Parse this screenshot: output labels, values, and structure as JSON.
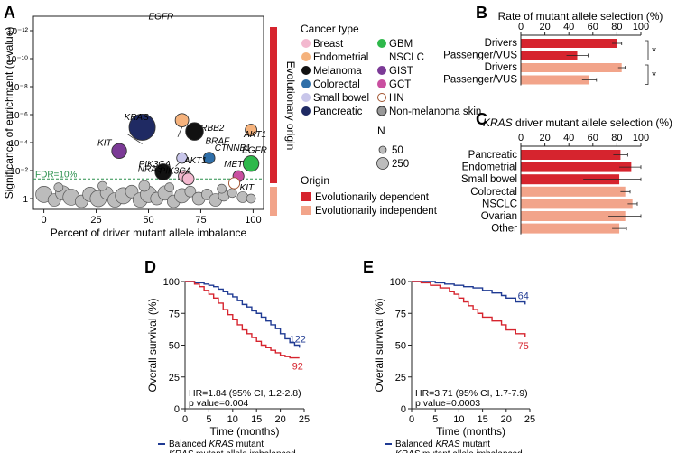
{
  "panel_letters": {
    "a": "A",
    "b": "B",
    "c": "C",
    "d": "D",
    "e": "E"
  },
  "chart_data": [
    {
      "id": "A",
      "type": "scatter",
      "title": "",
      "xlabel": "Percent of driver mutant allele imbalance",
      "ylabel": "Significance of enrichment (q value)",
      "xlim": [
        -5,
        105
      ],
      "x_ticks": [
        0,
        25,
        50,
        75,
        100
      ],
      "y_ticks": [
        {
          "label": "1",
          "exp": 0
        },
        {
          "label": "10⁻²",
          "exp": 2
        },
        {
          "label": "10⁻⁴",
          "exp": 4
        },
        {
          "label": "10⁻⁶",
          "exp": 6
        },
        {
          "label": "10⁻⁸",
          "exp": 8
        },
        {
          "label": "10⁻¹⁰",
          "exp": 10
        },
        {
          "label": "10⁻¹²",
          "exp": 12
        }
      ],
      "fdr_label": "FDR=10%",
      "fdr_exp": 1.4,
      "legend_title": "Cancer type",
      "legend_items": [
        {
          "label": "Breast",
          "color": "#f3b8cf"
        },
        {
          "label": "GBM",
          "color": "#2eb84b"
        },
        {
          "label": "Endometrial",
          "color": "#f5b27c"
        },
        {
          "label": "NSCLC",
          "color": ""
        },
        {
          "label": "Melanoma",
          "color": "#111111"
        },
        {
          "label": "GIST",
          "color": "#7b3a96"
        },
        {
          "label": "Colorectal",
          "color": "#2e6ea8"
        },
        {
          "label": "GCT",
          "color": "#c94fa0"
        },
        {
          "label": "Small bowel",
          "color": "#c8c6ea"
        },
        {
          "label": "HN",
          "color": "hollow-brown"
        },
        {
          "label": "Pancreatic",
          "color": "#1f2a63"
        },
        {
          "label": "Non-melanoma skin",
          "color": "#999999"
        }
      ],
      "size_title": "N",
      "size_items": [
        {
          "label": "50",
          "n": 50
        },
        {
          "label": "250",
          "n": 250
        }
      ],
      "origin_title": "Origin",
      "origin_items": [
        {
          "label": "Evolutionarily dependent",
          "color": "#d6242e"
        },
        {
          "label": "Evolutionarily independent",
          "color": "#f2a48a"
        }
      ],
      "origin_bar_label": "Evolutionary origin",
      "points": [
        {
          "gene": "EGFR",
          "x": 50,
          "exp": 12.8,
          "n": 0,
          "fill": "none"
        },
        {
          "gene": "ERBB2",
          "x": 66,
          "exp": 5.6,
          "n": 45,
          "fill": "#f5b27c"
        },
        {
          "gene": "KRAS",
          "x": 47,
          "exp": 5.1,
          "n": 250,
          "fill": "#1f2a63"
        },
        {
          "gene": "BRAF",
          "x": 72,
          "exp": 4.8,
          "n": 95,
          "fill": "#111111"
        },
        {
          "gene": "AKT1",
          "x": 99,
          "exp": 4.9,
          "n": 30,
          "fill": "#f5b27c"
        },
        {
          "gene": "KIT",
          "x": 36,
          "exp": 3.4,
          "n": 60,
          "fill": "#7b3a96"
        },
        {
          "gene": "CTNNB1",
          "x": 79,
          "exp": 2.9,
          "n": 28,
          "fill": "#2e6ea8"
        },
        {
          "gene": "PIK3CA",
          "x": 66,
          "exp": 2.9,
          "n": 22,
          "fill": "#c8c6ea"
        },
        {
          "gene": "EGFR",
          "x": 99,
          "exp": 2.5,
          "n": 70,
          "fill": "#2eb84b"
        },
        {
          "gene": "NRAS",
          "x": 57,
          "exp": 1.9,
          "n": 75,
          "fill": "#111111"
        },
        {
          "gene": "AKT1",
          "x": 67,
          "exp": 1.6,
          "n": 28,
          "fill": "#f3b8cf"
        },
        {
          "gene": "MET",
          "x": 93,
          "exp": 1.6,
          "n": 25,
          "fill": "#c94fa0"
        },
        {
          "gene": "PIK3CA",
          "x": 69,
          "exp": 1.4,
          "n": 30,
          "fill": "#f3b8cf"
        },
        {
          "gene": "KIT",
          "x": 91,
          "exp": 1.1,
          "n": 25,
          "fill": "hollow"
        }
      ]
    },
    {
      "id": "B",
      "type": "bar",
      "orientation": "horizontal",
      "title": "Rate of mutant allele selection (%)",
      "x_ticks": [
        0,
        20,
        40,
        60,
        80,
        100
      ],
      "xlim": [
        0,
        100
      ],
      "categories": [
        "Drivers",
        "Passenger/VUS",
        "Drivers",
        "Passenger/VUS"
      ],
      "values": [
        80,
        47,
        84,
        57
      ],
      "errors": [
        4,
        9,
        3,
        6
      ],
      "colors": [
        "#d6242e",
        "#d6242e",
        "#f2a48a",
        "#f2a48a"
      ],
      "significance": [
        "*",
        "*"
      ]
    },
    {
      "id": "C",
      "type": "bar",
      "orientation": "horizontal",
      "title_gene": "KRAS",
      "title_rest": " driver mutant allele selection (%)",
      "x_ticks": [
        0,
        20,
        40,
        60,
        80,
        100
      ],
      "xlim": [
        0,
        100
      ],
      "categories": [
        "Pancreatic",
        "Endometrial",
        "Small bowel",
        "Colorectal",
        "NSCLC",
        "Ovarian",
        "Other"
      ],
      "values": [
        83,
        92,
        82,
        87,
        93,
        87,
        82
      ],
      "errors": [
        6,
        10,
        30,
        4,
        4,
        14,
        6
      ],
      "colors": [
        "#d6242e",
        "#d6242e",
        "#d6242e",
        "#f2a48a",
        "#f2a48a",
        "#f2a48a",
        "#f2a48a"
      ]
    },
    {
      "id": "D",
      "type": "line",
      "xlabel": "Time (months)",
      "ylabel": "Overall survival (%)",
      "x_ticks": [
        0,
        5,
        10,
        15,
        20,
        25
      ],
      "y_ticks": [
        0,
        25,
        50,
        75,
        100
      ],
      "xlim": [
        0,
        25
      ],
      "ylim": [
        0,
        100
      ],
      "annotation_hr": "HR=1.84 (95% CI, 1.2-2.8)",
      "annotation_p": "p value=0.004",
      "series": [
        {
          "name_pre": "Balanced ",
          "name_gene": "KRAS",
          "name_post": " mutant",
          "color": "#1f3a93",
          "end_label": "122",
          "x": [
            0,
            2,
            4,
            5,
            6,
            7,
            8,
            9,
            10,
            11,
            12,
            13,
            14,
            15,
            16,
            17,
            18,
            19,
            20,
            21,
            22,
            23,
            24
          ],
          "y": [
            100,
            99,
            98,
            97,
            96,
            94,
            92,
            90,
            88,
            85,
            82,
            80,
            77,
            75,
            72,
            69,
            66,
            63,
            59,
            55,
            52,
            50,
            48
          ]
        },
        {
          "name_pre": "",
          "name_gene": "KRAS",
          "name_post": " mutant allele imbalanced",
          "color": "#d6242e",
          "end_label": "92",
          "x": [
            0,
            2,
            3,
            4,
            5,
            6,
            7,
            8,
            9,
            10,
            11,
            12,
            13,
            14,
            15,
            16,
            17,
            18,
            19,
            20,
            21,
            22,
            24
          ],
          "y": [
            100,
            98,
            96,
            93,
            90,
            87,
            83,
            78,
            74,
            70,
            66,
            62,
            59,
            56,
            53,
            50,
            48,
            46,
            44,
            42,
            41,
            40,
            40
          ]
        }
      ]
    },
    {
      "id": "E",
      "type": "line",
      "xlabel": "Time (months)",
      "ylabel": "Overall survival (%)",
      "x_ticks": [
        0,
        5,
        10,
        15,
        20,
        25
      ],
      "y_ticks": [
        0,
        25,
        50,
        75,
        100
      ],
      "xlim": [
        0,
        25
      ],
      "ylim": [
        0,
        100
      ],
      "annotation_hr": "HR=3.71 (95% CI, 1.7-7.9)",
      "annotation_p": "p value=0.0003",
      "series": [
        {
          "name_pre": "Balanced ",
          "name_gene": "KRAS",
          "name_post": " mutant",
          "color": "#1f3a93",
          "end_label": "64",
          "x": [
            0,
            3,
            5,
            7,
            9,
            11,
            13,
            15,
            17,
            19,
            20,
            22,
            24
          ],
          "y": [
            100,
            100,
            99,
            98,
            97,
            96,
            95,
            93,
            91,
            89,
            87,
            84,
            82
          ]
        },
        {
          "name_pre": "",
          "name_gene": "KRAS",
          "name_post": " mutant allele imbalanced",
          "color": "#d6242e",
          "end_label": "75",
          "x": [
            0,
            2,
            4,
            6,
            8,
            9,
            10,
            11,
            12,
            13,
            14,
            15,
            17,
            19,
            20,
            22,
            24
          ],
          "y": [
            100,
            99,
            97,
            95,
            92,
            90,
            87,
            84,
            81,
            78,
            75,
            72,
            69,
            66,
            62,
            59,
            56
          ]
        }
      ]
    }
  ]
}
